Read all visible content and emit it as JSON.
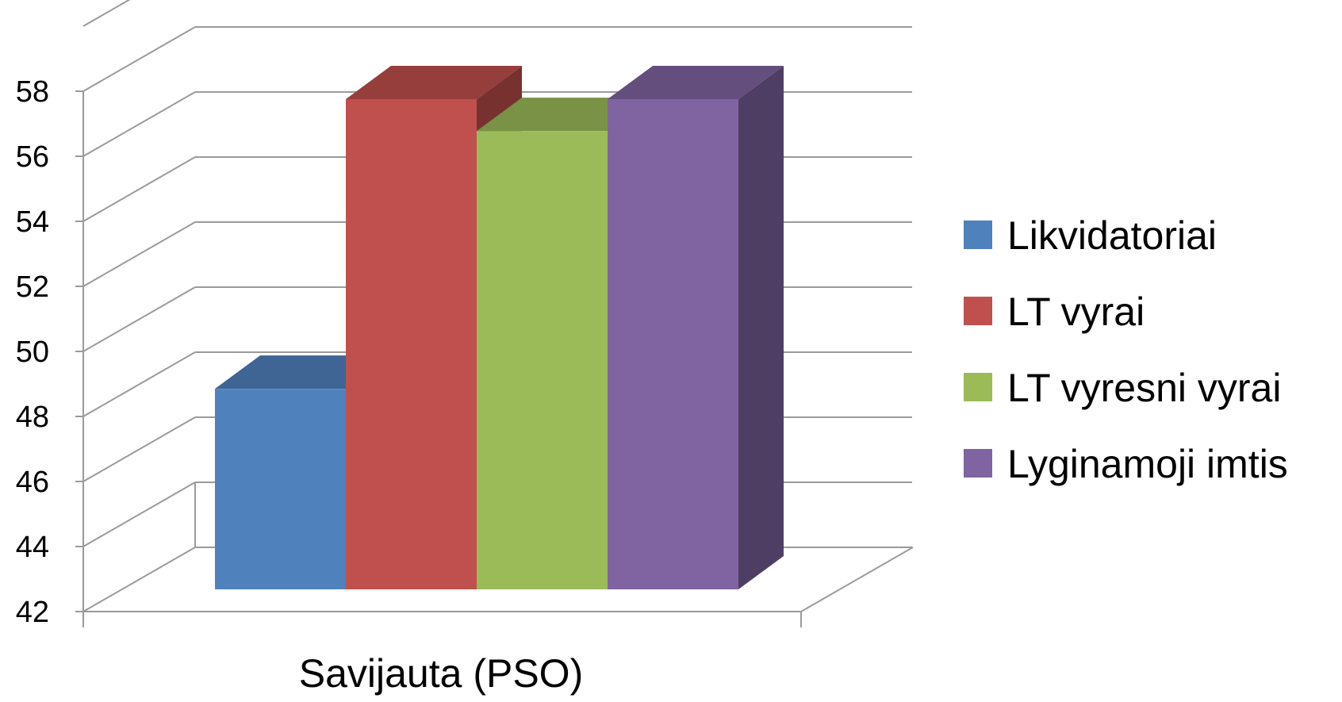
{
  "chart_data": {
    "type": "bar",
    "categories": [
      "Savijauta (PSO)"
    ],
    "series": [
      {
        "name": "Likvidatoriai",
        "values": [
          48.3
        ],
        "color": "#4F81BD"
      },
      {
        "name": "LT vyrai",
        "values": [
          57.4
        ],
        "color": "#C0504D"
      },
      {
        "name": "LT vyresni vyrai",
        "values": [
          56.4
        ],
        "color": "#9BBB59"
      },
      {
        "name": "Lyginamoji imtis",
        "values": [
          57.4
        ],
        "color": "#8064A2"
      }
    ],
    "ylim": [
      42,
      58
    ],
    "yticks": [
      "42",
      "44",
      "46",
      "48",
      "50",
      "52",
      "54",
      "56",
      "58"
    ],
    "xlabel": "Savijauta (PSO)",
    "ylabel": "",
    "title": "",
    "grid": true,
    "legend": "right",
    "style": "3d-clustered-column"
  }
}
